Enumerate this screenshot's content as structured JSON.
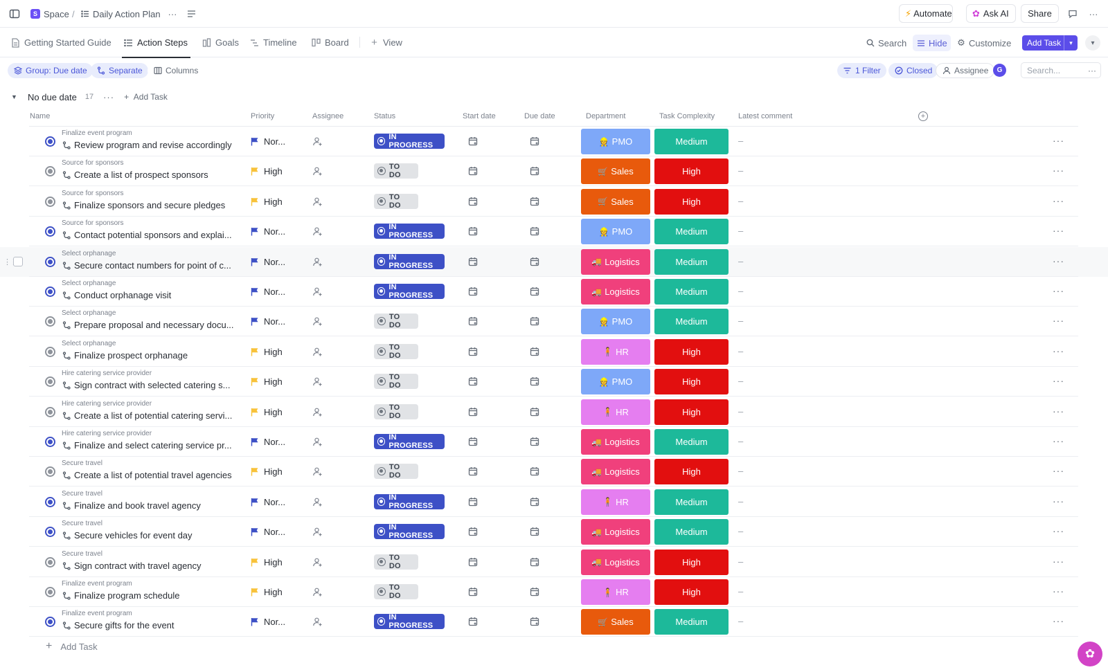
{
  "breadcrumb": {
    "space_badge": "S",
    "space": "Space",
    "separator": "/",
    "list": "Daily Action Plan"
  },
  "topbar": {
    "automate": "Automate",
    "ask_ai": "Ask AI",
    "share": "Share"
  },
  "tabs": [
    {
      "label": "Getting Started Guide",
      "icon": "doc-icon"
    },
    {
      "label": "Action Steps",
      "icon": "list-icon",
      "active": true
    },
    {
      "label": "Goals",
      "icon": "goals-icon"
    },
    {
      "label": "Timeline",
      "icon": "timeline-icon"
    },
    {
      "label": "Board",
      "icon": "board-icon"
    },
    {
      "label": "View",
      "icon": "plus-icon"
    }
  ],
  "toolbar": {
    "search": "Search",
    "hide": "Hide",
    "customize": "Customize",
    "add_task": "Add Task"
  },
  "filters": {
    "group": "Group: Due date",
    "separate": "Separate",
    "columns": "Columns",
    "filter": "1 Filter",
    "closed": "Closed",
    "assignee": "Assignee",
    "avatar": "G",
    "search_placeholder": "Search..."
  },
  "group": {
    "title": "No due date",
    "count": "17",
    "add_task": "Add Task"
  },
  "columns": {
    "name": "Name",
    "priority": "Priority",
    "assignee": "Assignee",
    "status": "Status",
    "start_date": "Start date",
    "due_date": "Due date",
    "department": "Department",
    "complexity": "Task Complexity",
    "comment": "Latest comment"
  },
  "colors": {
    "in_progress": "#3d50c6",
    "to_do": "#e1e3e6",
    "flag_normal": "#3d50c6",
    "flag_high": "#f8c23a",
    "pmo": "#7ea8f8",
    "sales": "#e85a0c",
    "logistics": "#f0407c",
    "hr": "#e57ef0",
    "medium": "#1db99a",
    "high": "#e20f0f",
    "accent": "#5b4de9"
  },
  "tasks": [
    {
      "parent": "Finalize event program",
      "name": "Review program and revise accordingly",
      "priority": "Nor...",
      "priority_level": "normal",
      "status": "IN PROGRESS",
      "status_key": "ip",
      "dept": "PMO",
      "dept_emoji": "👷",
      "dept_key": "pmo",
      "complexity": "Medium",
      "comment": "–"
    },
    {
      "parent": "Source for sponsors",
      "name": "Create a list of prospect sponsors",
      "priority": "High",
      "priority_level": "high",
      "status": "TO DO",
      "status_key": "td",
      "dept": "Sales",
      "dept_emoji": "🛒",
      "dept_key": "sales",
      "complexity": "High",
      "comment": "–"
    },
    {
      "parent": "Source for sponsors",
      "name": "Finalize sponsors and secure pledges",
      "priority": "High",
      "priority_level": "high",
      "status": "TO DO",
      "status_key": "td",
      "dept": "Sales",
      "dept_emoji": "🛒",
      "dept_key": "sales",
      "complexity": "High",
      "comment": "–"
    },
    {
      "parent": "Source for sponsors",
      "name": "Contact potential sponsors and explai...",
      "priority": "Nor...",
      "priority_level": "normal",
      "status": "IN PROGRESS",
      "status_key": "ip",
      "dept": "PMO",
      "dept_emoji": "👷",
      "dept_key": "pmo",
      "complexity": "Medium",
      "comment": "–"
    },
    {
      "parent": "Select orphanage",
      "name": "Secure contact numbers for point of c...",
      "priority": "Nor...",
      "priority_level": "normal",
      "status": "IN PROGRESS",
      "status_key": "ip",
      "dept": "Logistics",
      "dept_emoji": "🚚",
      "dept_key": "logistics",
      "complexity": "Medium",
      "comment": "–",
      "hover": true
    },
    {
      "parent": "Select orphanage",
      "name": "Conduct orphanage visit",
      "priority": "Nor...",
      "priority_level": "normal",
      "status": "IN PROGRESS",
      "status_key": "ip",
      "dept": "Logistics",
      "dept_emoji": "🚚",
      "dept_key": "logistics",
      "complexity": "Medium",
      "comment": "–"
    },
    {
      "parent": "Select orphanage",
      "name": "Prepare proposal and necessary docu...",
      "priority": "Nor...",
      "priority_level": "normal",
      "status": "TO DO",
      "status_key": "td",
      "dept": "PMO",
      "dept_emoji": "👷",
      "dept_key": "pmo",
      "complexity": "Medium",
      "comment": "–"
    },
    {
      "parent": "Select orphanage",
      "name": "Finalize prospect orphanage",
      "priority": "High",
      "priority_level": "high",
      "status": "TO DO",
      "status_key": "td",
      "dept": "HR",
      "dept_emoji": "🧍",
      "dept_key": "hr",
      "complexity": "High",
      "comment": "–"
    },
    {
      "parent": "Hire catering service provider",
      "name": "Sign contract with selected catering s...",
      "priority": "High",
      "priority_level": "high",
      "status": "TO DO",
      "status_key": "td",
      "dept": "PMO",
      "dept_emoji": "👷",
      "dept_key": "pmo",
      "complexity": "High",
      "comment": "–"
    },
    {
      "parent": "Hire catering service provider",
      "name": "Create a list of potential catering servi...",
      "priority": "High",
      "priority_level": "high",
      "status": "TO DO",
      "status_key": "td",
      "dept": "HR",
      "dept_emoji": "🧍",
      "dept_key": "hr",
      "complexity": "High",
      "comment": "–"
    },
    {
      "parent": "Hire catering service provider",
      "name": "Finalize and select catering service pr...",
      "priority": "Nor...",
      "priority_level": "normal",
      "status": "IN PROGRESS",
      "status_key": "ip",
      "dept": "Logistics",
      "dept_emoji": "🚚",
      "dept_key": "logistics",
      "complexity": "Medium",
      "comment": "–"
    },
    {
      "parent": "Secure travel",
      "name": "Create a list of potential travel agencies",
      "priority": "High",
      "priority_level": "high",
      "status": "TO DO",
      "status_key": "td",
      "dept": "Logistics",
      "dept_emoji": "🚚",
      "dept_key": "logistics",
      "complexity": "High",
      "comment": "–"
    },
    {
      "parent": "Secure travel",
      "name": "Finalize and book travel agency",
      "priority": "Nor...",
      "priority_level": "normal",
      "status": "IN PROGRESS",
      "status_key": "ip",
      "dept": "HR",
      "dept_emoji": "🧍",
      "dept_key": "hr",
      "complexity": "Medium",
      "comment": "–"
    },
    {
      "parent": "Secure travel",
      "name": "Secure vehicles for event day",
      "priority": "Nor...",
      "priority_level": "normal",
      "status": "IN PROGRESS",
      "status_key": "ip",
      "dept": "Logistics",
      "dept_emoji": "🚚",
      "dept_key": "logistics",
      "complexity": "Medium",
      "comment": "–"
    },
    {
      "parent": "Secure travel",
      "name": "Sign contract with travel agency",
      "priority": "High",
      "priority_level": "high",
      "status": "TO DO",
      "status_key": "td",
      "dept": "Logistics",
      "dept_emoji": "🚚",
      "dept_key": "logistics",
      "complexity": "High",
      "comment": "–"
    },
    {
      "parent": "Finalize event program",
      "name": "Finalize program schedule",
      "priority": "High",
      "priority_level": "high",
      "status": "TO DO",
      "status_key": "td",
      "dept": "HR",
      "dept_emoji": "🧍",
      "dept_key": "hr",
      "complexity": "High",
      "comment": "–"
    },
    {
      "parent": "Finalize event program",
      "name": "Secure gifts for the event",
      "priority": "Nor...",
      "priority_level": "normal",
      "status": "IN PROGRESS",
      "status_key": "ip",
      "dept": "Sales",
      "dept_emoji": "🛒",
      "dept_key": "sales",
      "complexity": "Medium",
      "comment": "–"
    }
  ],
  "footer": {
    "add_task": "Add Task"
  }
}
